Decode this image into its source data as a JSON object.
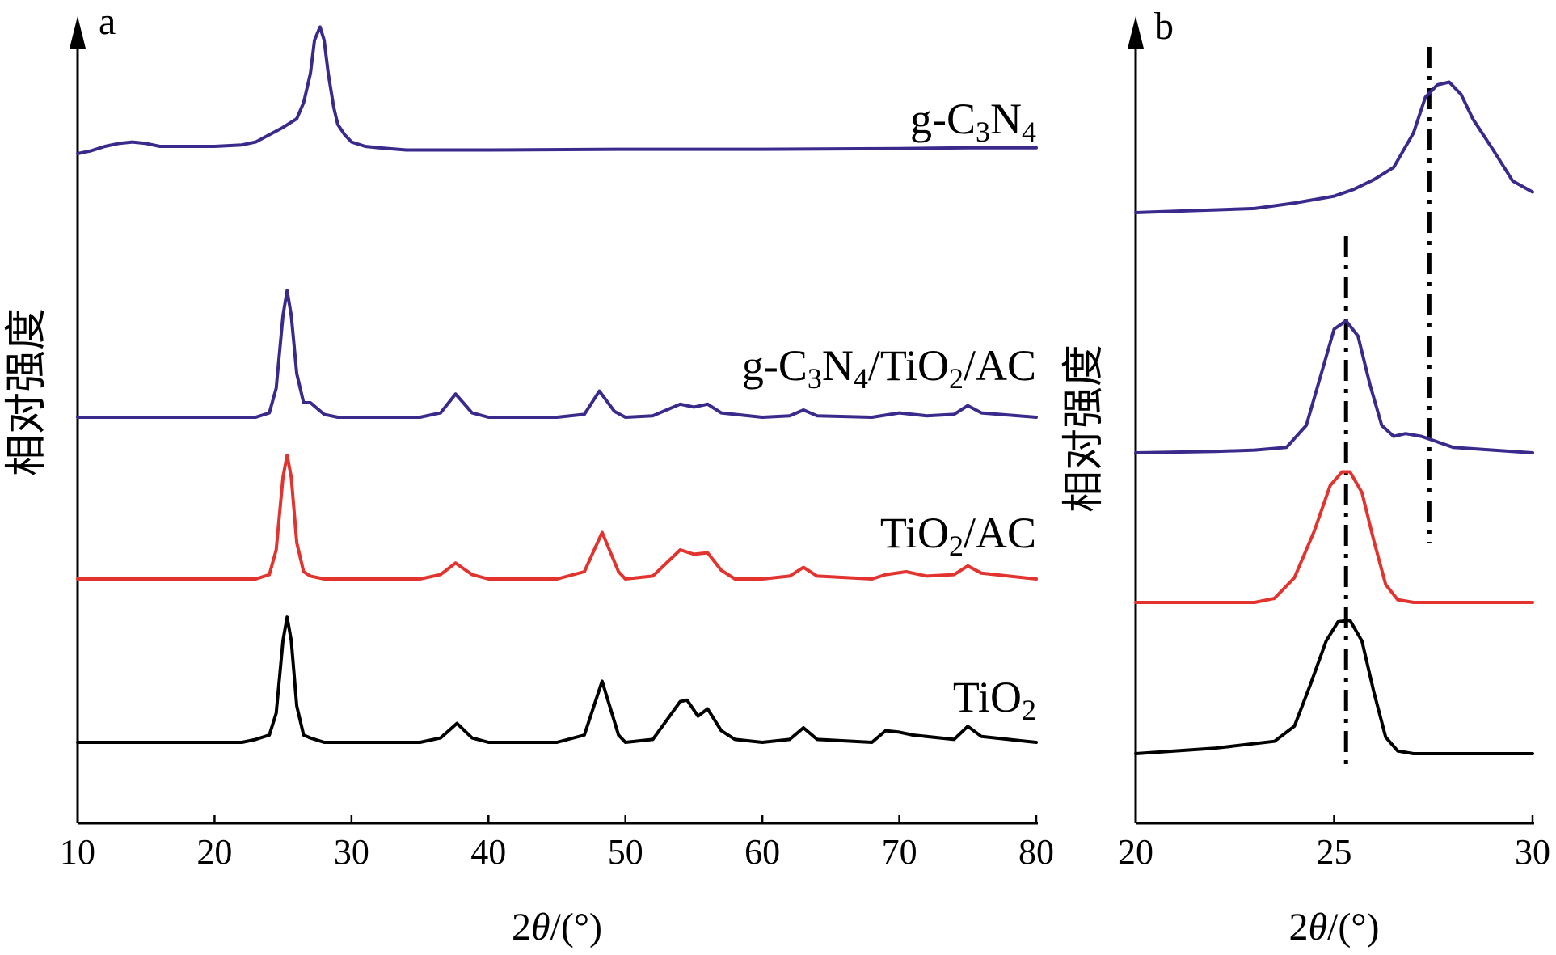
{
  "chart_data": [
    {
      "type": "line",
      "panel": "a",
      "xlabel": "2θ/(°)",
      "ylabel": "相对强度",
      "xlim": [
        10,
        80
      ],
      "xticks": [
        10,
        20,
        30,
        40,
        50,
        60,
        70,
        80
      ],
      "grid": false,
      "series": [
        {
          "name": "g-C3N4",
          "label_main": "g-C",
          "label_sub1": "3",
          "label_mid": "N",
          "label_sub2": "4",
          "label_end": "",
          "color": "#3b2a8c",
          "baseline": 1.0,
          "x": [
            10,
            11,
            12,
            13,
            14,
            15,
            16,
            18,
            20,
            22,
            23,
            24,
            25,
            26,
            26.5,
            27,
            27.3,
            27.7,
            28,
            28.3,
            28.7,
            29,
            29.5,
            30,
            31,
            32,
            34,
            36,
            40,
            50,
            60,
            70,
            75,
            80
          ],
          "y": [
            0,
            0.02,
            0.05,
            0.07,
            0.08,
            0.07,
            0.05,
            0.05,
            0.05,
            0.06,
            0.08,
            0.13,
            0.18,
            0.24,
            0.35,
            0.55,
            0.78,
            0.87,
            0.78,
            0.55,
            0.32,
            0.2,
            0.13,
            0.08,
            0.05,
            0.04,
            0.025,
            0.025,
            0.025,
            0.03,
            0.03,
            0.035,
            0.04,
            0.04
          ]
        },
        {
          "name": "g-C3N4/TiO2/AC",
          "label_main": "g-C",
          "label_sub1": "3",
          "label_mid": "N",
          "label_sub2": "4",
          "label_end": "/TiO",
          "label_sub3": "2",
          "label_tail": "/AC",
          "color": "#3b2a8c",
          "baseline": 0.0,
          "x": [
            10,
            20,
            23,
            24,
            24.5,
            25,
            25.3,
            25.6,
            26,
            26.5,
            27,
            28,
            29,
            30,
            35,
            36.5,
            37.6,
            38.8,
            40,
            45,
            47,
            48.1,
            49.2,
            50,
            52,
            54,
            55,
            56,
            57,
            60,
            62,
            63,
            64,
            68,
            70,
            72,
            74,
            75,
            76,
            80
          ],
          "y": [
            0,
            0,
            0,
            0.03,
            0.2,
            0.7,
            0.87,
            0.7,
            0.3,
            0.1,
            0.1,
            0.02,
            0,
            0,
            0,
            0.03,
            0.16,
            0.03,
            0,
            0,
            0.02,
            0.18,
            0.04,
            0,
            0.01,
            0.09,
            0.07,
            0.09,
            0.03,
            0,
            0.01,
            0.05,
            0.01,
            0,
            0.03,
            0.01,
            0.02,
            0.08,
            0.03,
            0
          ]
        },
        {
          "name": "TiO2/AC",
          "label_main": "TiO",
          "label_sub1": "2",
          "label_tail": "/AC",
          "color": "#e2332e",
          "baseline": 0.0,
          "x": [
            10,
            20,
            23,
            24,
            24.5,
            25,
            25.3,
            25.6,
            26,
            26.5,
            27,
            28,
            30,
            35,
            36.5,
            37.6,
            38.8,
            40,
            45,
            47,
            48.3,
            49.5,
            50,
            52,
            54,
            55,
            56,
            57,
            58,
            60,
            62,
            63,
            64,
            68,
            69,
            70.5,
            72,
            74,
            75,
            76,
            80
          ],
          "y": [
            0,
            0,
            0,
            0.03,
            0.2,
            0.7,
            0.85,
            0.7,
            0.25,
            0.05,
            0.02,
            0,
            0,
            0,
            0.03,
            0.11,
            0.03,
            0,
            0,
            0.05,
            0.32,
            0.05,
            0,
            0.02,
            0.2,
            0.17,
            0.18,
            0.06,
            0,
            0,
            0.02,
            0.08,
            0.02,
            0,
            0.03,
            0.05,
            0.02,
            0.03,
            0.09,
            0.04,
            0
          ]
        },
        {
          "name": "TiO2",
          "label_main": "TiO",
          "label_sub1": "2",
          "label_tail": "",
          "color": "#000000",
          "baseline": 0.0,
          "x": [
            10,
            20,
            22,
            23,
            24,
            24.5,
            25,
            25.3,
            25.6,
            26,
            26.5,
            27,
            28,
            30,
            35,
            36.5,
            37.7,
            38.8,
            40,
            45,
            47,
            48.3,
            49.5,
            50,
            52,
            54,
            54.5,
            55.3,
            56,
            57,
            58,
            60,
            62,
            63,
            64,
            68,
            69,
            70,
            71,
            74,
            75,
            76,
            80
          ],
          "y": [
            0,
            0,
            0,
            0.02,
            0.05,
            0.2,
            0.7,
            0.86,
            0.7,
            0.25,
            0.05,
            0.03,
            0,
            0,
            0,
            0.03,
            0.13,
            0.03,
            0,
            0,
            0.05,
            0.42,
            0.05,
            0,
            0.02,
            0.28,
            0.29,
            0.18,
            0.23,
            0.08,
            0.02,
            0,
            0.02,
            0.1,
            0.02,
            0,
            0.08,
            0.07,
            0.05,
            0.02,
            0.11,
            0.04,
            0
          ]
        }
      ]
    },
    {
      "type": "line",
      "panel": "b",
      "xlabel": "2θ/(°)",
      "ylabel": "相对强度",
      "xlim": [
        20,
        30
      ],
      "xticks": [
        20,
        25,
        30
      ],
      "grid": false,
      "ref_lines_x": [
        25.3,
        27.4
      ],
      "series": [
        {
          "name": "g-C3N4",
          "color": "#3b2a8c",
          "x": [
            20,
            21,
            22,
            23,
            24,
            25,
            25.5,
            26,
            26.5,
            27,
            27.3,
            27.6,
            27.9,
            28.2,
            28.5,
            29,
            29.5,
            30
          ],
          "y": [
            0,
            0.01,
            0.02,
            0.03,
            0.07,
            0.12,
            0.17,
            0.24,
            0.33,
            0.58,
            0.84,
            0.93,
            0.95,
            0.86,
            0.68,
            0.46,
            0.23,
            0.15
          ]
        },
        {
          "name": "g-C3N4/TiO2/AC",
          "color": "#3b2a8c",
          "x": [
            20,
            22,
            23,
            23.8,
            24.3,
            24.7,
            25,
            25.3,
            25.6,
            25.9,
            26.2,
            26.5,
            26.8,
            27.2,
            27.6,
            28,
            30
          ],
          "y": [
            0,
            0.01,
            0.02,
            0.04,
            0.2,
            0.6,
            0.9,
            0.96,
            0.85,
            0.5,
            0.2,
            0.12,
            0.14,
            0.12,
            0.08,
            0.04,
            0
          ]
        },
        {
          "name": "TiO2/AC",
          "color": "#e2332e",
          "x": [
            20,
            23,
            23.5,
            24,
            24.5,
            24.9,
            25.2,
            25.4,
            25.7,
            26,
            26.3,
            26.6,
            27,
            30
          ],
          "y": [
            0,
            0,
            0.03,
            0.18,
            0.52,
            0.85,
            0.95,
            0.95,
            0.8,
            0.45,
            0.13,
            0.02,
            0,
            0
          ]
        },
        {
          "name": "TiO2",
          "color": "#000000",
          "x": [
            20,
            22,
            23.5,
            24,
            24.4,
            24.8,
            25.1,
            25.4,
            25.7,
            26,
            26.3,
            26.6,
            27,
            30
          ],
          "y": [
            0,
            0.04,
            0.09,
            0.2,
            0.5,
            0.82,
            0.96,
            0.97,
            0.82,
            0.45,
            0.12,
            0.02,
            0,
            0
          ]
        }
      ]
    }
  ]
}
